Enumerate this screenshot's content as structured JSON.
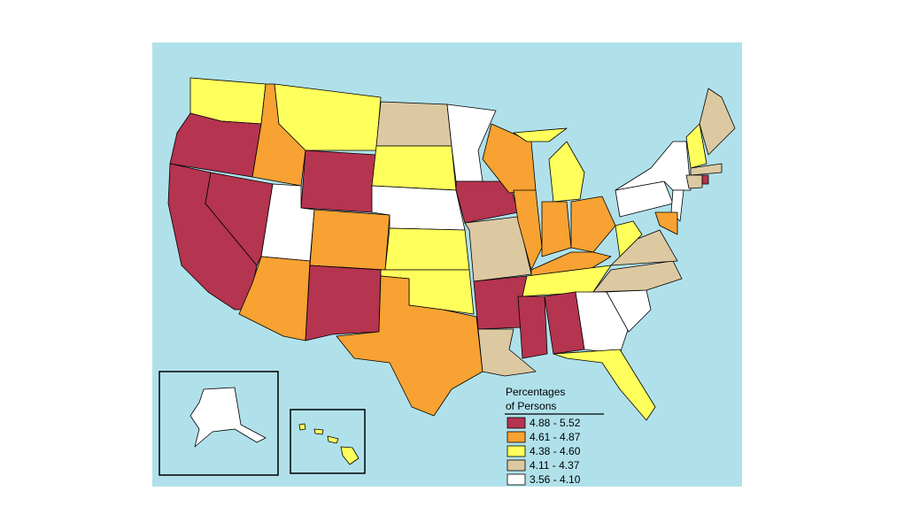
{
  "legend": {
    "title": [
      "Percentages",
      "of Persons"
    ],
    "items": [
      {
        "label": "4.88 - 5.52",
        "color": "#b5344f"
      },
      {
        "label": "4.61 - 4.87",
        "color": "#f7a232"
      },
      {
        "label": "4.38 - 4.60",
        "color": "#ffff5c"
      },
      {
        "label": "4.11 - 4.37",
        "color": "#dcc9a2"
      },
      {
        "label": "3.56 - 4.10",
        "color": "#ffffff"
      }
    ]
  }
}
